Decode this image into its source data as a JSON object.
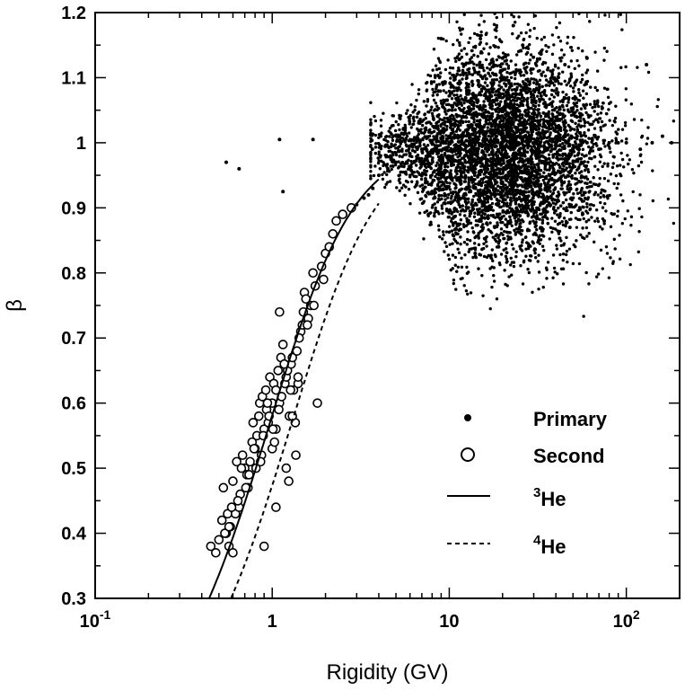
{
  "chart_data": {
    "type": "scatter",
    "xlabel": "Rigidity (GV)",
    "ylabel": "β",
    "x_scale": "log",
    "xlim": [
      0.1,
      200
    ],
    "ylim": [
      0.3,
      1.2
    ],
    "x_ticks": [
      {
        "value": 0.1,
        "base": "10",
        "exp": "-1"
      },
      {
        "value": 1,
        "base": "1",
        "exp": ""
      },
      {
        "value": 10,
        "base": "10",
        "exp": ""
      },
      {
        "value": 100,
        "base": "10",
        "exp": "2"
      }
    ],
    "y_ticks": [
      "0.3",
      "0.4",
      "0.5",
      "0.6",
      "0.7",
      "0.8",
      "0.9",
      "1",
      "1.1",
      "1.2"
    ],
    "grid": false,
    "legend_position": "bottom-right",
    "legend": [
      {
        "label": "Primary",
        "style": "filled-dot",
        "sup": ""
      },
      {
        "label": "Second",
        "style": "open-circle",
        "sup": ""
      },
      {
        "label": "He",
        "style": "solid-line",
        "sup": "3"
      },
      {
        "label": "He",
        "style": "dashed-line",
        "sup": "4"
      }
    ],
    "series": [
      {
        "name": "Primary",
        "marker": "filled-dot",
        "core": {
          "x_range": [
            4,
            100
          ],
          "y_range": [
            0.9,
            1.08
          ]
        },
        "x": [
          0.55,
          0.65,
          1.1,
          1.15,
          1.7,
          2.6,
          3.0,
          3.3,
          3.5,
          3.7,
          4.0,
          4.5,
          5,
          6,
          7,
          8,
          9,
          10,
          12,
          14,
          16,
          18,
          20,
          22,
          25,
          28,
          30,
          35,
          40,
          50,
          60,
          70,
          80,
          90,
          100,
          120,
          140,
          160,
          180,
          9,
          15,
          20,
          23,
          26,
          33,
          45,
          60,
          11,
          19,
          14,
          32,
          48,
          75,
          130
        ],
        "y": [
          0.97,
          0.96,
          1.005,
          0.925,
          1.005,
          0.89,
          0.905,
          0.915,
          0.92,
          0.93,
          0.95,
          0.96,
          0.97,
          0.98,
          0.99,
          1.0,
          1.0,
          1.0,
          1.01,
          1.0,
          1.01,
          1.0,
          1.0,
          1.0,
          0.99,
          1.0,
          1.0,
          0.99,
          1.0,
          0.99,
          1.0,
          0.99,
          1.0,
          1.0,
          1.0,
          0.99,
          1.0,
          1.01,
          1.0,
          1.16,
          1.16,
          1.13,
          1.18,
          1.15,
          1.14,
          1.12,
          1.13,
          0.86,
          0.84,
          0.83,
          0.85,
          0.87,
          0.88,
          1.12
        ]
      },
      {
        "name": "Second",
        "marker": "open-circle",
        "x": [
          0.45,
          0.48,
          0.5,
          0.52,
          0.53,
          0.55,
          0.56,
          0.57,
          0.58,
          0.6,
          0.6,
          0.62,
          0.63,
          0.65,
          0.66,
          0.68,
          0.7,
          0.72,
          0.73,
          0.75,
          0.77,
          0.78,
          0.8,
          0.82,
          0.84,
          0.85,
          0.87,
          0.88,
          0.9,
          0.92,
          0.93,
          0.95,
          0.97,
          1.0,
          1.0,
          1.02,
          1.05,
          1.05,
          1.08,
          1.1,
          1.1,
          1.12,
          1.15,
          1.18,
          1.2,
          1.22,
          1.25,
          1.28,
          1.3,
          1.32,
          1.35,
          1.38,
          1.4,
          1.45,
          1.48,
          1.5,
          1.52,
          1.55,
          1.6,
          1.65,
          1.7,
          1.75,
          1.8,
          1.9,
          2.0,
          2.1,
          2.2,
          2.3,
          2.5,
          2.8,
          0.54,
          0.59,
          0.67,
          0.74,
          0.81,
          0.89,
          0.96,
          1.03,
          1.13,
          1.24,
          1.36,
          0.57,
          0.64,
          0.71,
          0.79,
          0.86,
          0.94,
          1.01,
          1.09,
          1.17,
          1.27,
          1.42,
          1.58,
          1.72,
          1.95,
          0.9,
          1.05,
          1.2,
          1.4,
          1.3
        ],
        "y": [
          0.38,
          0.37,
          0.39,
          0.42,
          0.47,
          0.4,
          0.43,
          0.38,
          0.41,
          0.37,
          0.48,
          0.43,
          0.51,
          0.44,
          0.46,
          0.52,
          0.5,
          0.49,
          0.47,
          0.51,
          0.54,
          0.57,
          0.53,
          0.55,
          0.58,
          0.6,
          0.52,
          0.61,
          0.56,
          0.62,
          0.59,
          0.57,
          0.64,
          0.6,
          0.53,
          0.63,
          0.62,
          0.56,
          0.65,
          0.74,
          0.6,
          0.67,
          0.69,
          0.63,
          0.64,
          0.65,
          0.58,
          0.66,
          0.67,
          0.62,
          0.57,
          0.68,
          0.63,
          0.71,
          0.72,
          0.74,
          0.77,
          0.76,
          0.73,
          0.75,
          0.8,
          0.78,
          0.6,
          0.81,
          0.83,
          0.84,
          0.86,
          0.88,
          0.89,
          0.9,
          0.4,
          0.44,
          0.5,
          0.49,
          0.5,
          0.55,
          0.58,
          0.54,
          0.61,
          0.48,
          0.52,
          0.41,
          0.45,
          0.47,
          0.53,
          0.51,
          0.6,
          0.56,
          0.59,
          0.66,
          0.62,
          0.7,
          0.72,
          0.75,
          0.79,
          0.38,
          0.44,
          0.5,
          0.64,
          0.58
        ]
      },
      {
        "name": "He",
        "sup": "3",
        "line": "solid",
        "mass_over_charge": 1.4
      },
      {
        "name": "He",
        "sup": "4",
        "line": "dashed",
        "mass_over_charge": 1.86
      }
    ]
  }
}
